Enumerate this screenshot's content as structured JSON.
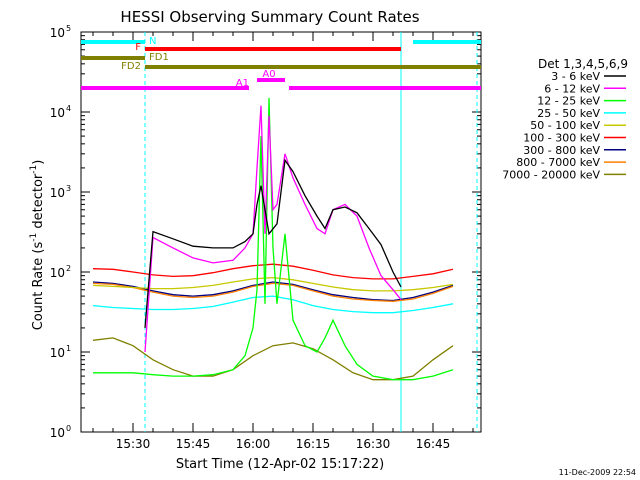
{
  "chart_data": {
    "type": "line",
    "title": "HESSI Observing Summary Count Rates",
    "xlabel": "Start Time (12-Apr-02 15:17:22)",
    "ylabel": "Count Rate (s",
    "ylabel_sup": "-1",
    "ylabel_tail": " detector",
    "ylabel_tail_sup": "-1",
    "ylabel_close": ")",
    "yscale": "log",
    "ylim": [
      1,
      100000
    ],
    "xlim_minutes": [
      15.29,
      16.93
    ],
    "x_ticks": [
      "15:30",
      "15:45",
      "16:00",
      "16:15",
      "16:30",
      "16:45"
    ],
    "y_ticks": [
      "10",
      "10",
      "10",
      "10",
      "10"
    ],
    "y_tick_exponents": [
      "1",
      "2",
      "3",
      "4",
      "5"
    ],
    "y_bottom_tick": "10",
    "y_bottom_exp": "0",
    "timestamp": "11-Dec-2009 22:54",
    "legend_title": "Det 1,3,4,5,6,9",
    "legend_placement": "right",
    "series": [
      {
        "name": "3 - 6 keV",
        "color": "#000000",
        "x": [
          "15:33",
          "15:35",
          "15:40",
          "15:45",
          "15:50",
          "15:55",
          "15:58",
          "16:00",
          "16:01",
          "16:02",
          "16:04",
          "16:06",
          "16:08",
          "16:10",
          "16:13",
          "16:16",
          "16:18",
          "16:20",
          "16:23",
          "16:26",
          "16:29",
          "16:32",
          "16:35",
          "16:37"
        ],
        "y": [
          20,
          320,
          260,
          210,
          200,
          200,
          240,
          300,
          700,
          1200,
          300,
          400,
          2500,
          1800,
          900,
          500,
          350,
          600,
          650,
          550,
          350,
          220,
          100,
          65
        ]
      },
      {
        "name": "6 - 12 keV",
        "color": "#ff00ff",
        "x": [
          "15:33",
          "15:35",
          "15:40",
          "15:45",
          "15:50",
          "15:55",
          "15:58",
          "16:00",
          "16:01",
          "16:02",
          "16:03",
          "16:04",
          "16:05",
          "16:06",
          "16:08",
          "16:10",
          "16:13",
          "16:16",
          "16:18",
          "16:20",
          "16:23",
          "16:26",
          "16:29",
          "16:32",
          "16:35",
          "16:37"
        ],
        "y": [
          10,
          270,
          200,
          150,
          130,
          140,
          200,
          300,
          2000,
          12000,
          300,
          9000,
          600,
          700,
          3000,
          1500,
          700,
          350,
          300,
          600,
          700,
          500,
          200,
          90,
          60,
          45
        ]
      },
      {
        "name": "12 - 25 keV",
        "color": "#00ff00",
        "x": [
          "15:20",
          "15:25",
          "15:30",
          "15:35",
          "15:40",
          "15:45",
          "15:50",
          "15:55",
          "15:58",
          "16:00",
          "16:01",
          "16:02",
          "16:03",
          "16:04",
          "16:05",
          "16:06",
          "16:08",
          "16:10",
          "16:13",
          "16:16",
          "16:18",
          "16:20",
          "16:23",
          "16:26",
          "16:30",
          "16:35",
          "16:40",
          "16:45",
          "16:50"
        ],
        "y": [
          5.5,
          5.5,
          5.5,
          5.2,
          5,
          5,
          5.2,
          6,
          9,
          20,
          60,
          5000,
          40,
          15000,
          200,
          40,
          300,
          25,
          12,
          10,
          15,
          25,
          12,
          7,
          5,
          4.5,
          4.5,
          5,
          6
        ]
      },
      {
        "name": "25 - 50 keV",
        "color": "#00ffff",
        "x": [
          "15:20",
          "15:25",
          "15:30",
          "15:35",
          "15:40",
          "15:45",
          "15:50",
          "15:55",
          "16:00",
          "16:05",
          "16:10",
          "16:15",
          "16:20",
          "16:25",
          "16:30",
          "16:35",
          "16:40",
          "16:45",
          "16:50"
        ],
        "y": [
          38,
          36,
          35,
          34,
          34,
          35,
          37,
          42,
          48,
          50,
          45,
          38,
          34,
          32,
          31,
          31,
          33,
          36,
          40
        ]
      },
      {
        "name": "50 - 100 keV",
        "color": "#c8c800",
        "x": [
          "15:20",
          "15:25",
          "15:30",
          "15:35",
          "15:40",
          "15:45",
          "15:50",
          "15:55",
          "16:00",
          "16:05",
          "16:10",
          "16:15",
          "16:20",
          "16:25",
          "16:30",
          "16:35",
          "16:40",
          "16:45",
          "16:50"
        ],
        "y": [
          68,
          66,
          64,
          62,
          62,
          64,
          68,
          75,
          82,
          85,
          80,
          72,
          65,
          60,
          58,
          58,
          60,
          64,
          70
        ]
      },
      {
        "name": "100 - 300 keV",
        "color": "#ff0000",
        "x": [
          "15:20",
          "15:25",
          "15:30",
          "15:35",
          "15:40",
          "15:45",
          "15:50",
          "15:55",
          "16:00",
          "16:05",
          "16:10",
          "16:15",
          "16:20",
          "16:25",
          "16:30",
          "16:35",
          "16:40",
          "16:45",
          "16:50"
        ],
        "y": [
          110,
          108,
          100,
          92,
          88,
          90,
          98,
          110,
          120,
          125,
          118,
          105,
          92,
          85,
          82,
          82,
          88,
          95,
          108
        ]
      },
      {
        "name": "300 - 800 keV",
        "color": "#000080",
        "x": [
          "15:20",
          "15:25",
          "15:30",
          "15:35",
          "15:40",
          "15:45",
          "15:50",
          "15:55",
          "16:00",
          "16:05",
          "16:10",
          "16:15",
          "16:20",
          "16:25",
          "16:30",
          "16:35",
          "16:40",
          "16:45",
          "16:50"
        ],
        "y": [
          75,
          72,
          66,
          58,
          52,
          50,
          52,
          58,
          68,
          75,
          70,
          60,
          52,
          48,
          45,
          44,
          48,
          56,
          68
        ]
      },
      {
        "name": "800 - 7000 keV",
        "color": "#ff8000",
        "x": [
          "15:20",
          "15:25",
          "15:30",
          "15:35",
          "15:40",
          "15:45",
          "15:50",
          "15:55",
          "16:00",
          "16:05",
          "16:10",
          "16:15",
          "16:20",
          "16:25",
          "16:30",
          "16:35",
          "16:40",
          "16:45",
          "16:50"
        ],
        "y": [
          72,
          70,
          64,
          56,
          50,
          48,
          50,
          56,
          66,
          72,
          68,
          58,
          50,
          46,
          44,
          43,
          46,
          54,
          66
        ]
      },
      {
        "name": "7000 - 20000 keV",
        "color": "#808000",
        "x": [
          "15:20",
          "15:25",
          "15:30",
          "15:35",
          "15:40",
          "15:45",
          "15:50",
          "15:55",
          "16:00",
          "16:05",
          "16:10",
          "16:15",
          "16:20",
          "16:25",
          "16:30",
          "16:35",
          "16:40",
          "16:45",
          "16:50"
        ],
        "y": [
          14,
          15,
          12,
          8,
          6,
          5,
          5,
          6,
          9,
          12,
          13,
          11,
          8,
          5.5,
          4.5,
          4.5,
          5,
          8,
          12
        ]
      }
    ],
    "flag_bars": [
      {
        "label": "N",
        "color": "#00ffff",
        "segments": [
          [
            "15:17",
            "15:33"
          ],
          [
            "16:40",
            "16:57"
          ]
        ]
      },
      {
        "label": "F",
        "color": "#ff0000",
        "segments": [
          [
            "15:33",
            "16:37"
          ]
        ]
      },
      {
        "label": "FD1",
        "color": "#808000",
        "segments": [
          [
            "15:17",
            "15:33"
          ]
        ]
      },
      {
        "label": "FD2",
        "color": "#808000",
        "segments": [
          [
            "15:33",
            "16:57"
          ]
        ]
      },
      {
        "label": "A0",
        "color": "#ff00ff",
        "segments": [
          [
            "16:01",
            "16:08"
          ]
        ]
      },
      {
        "label": "A1",
        "color": "#ff00ff",
        "segments": [
          [
            "15:17",
            "15:59"
          ],
          [
            "16:09",
            "16:57"
          ]
        ]
      }
    ]
  }
}
